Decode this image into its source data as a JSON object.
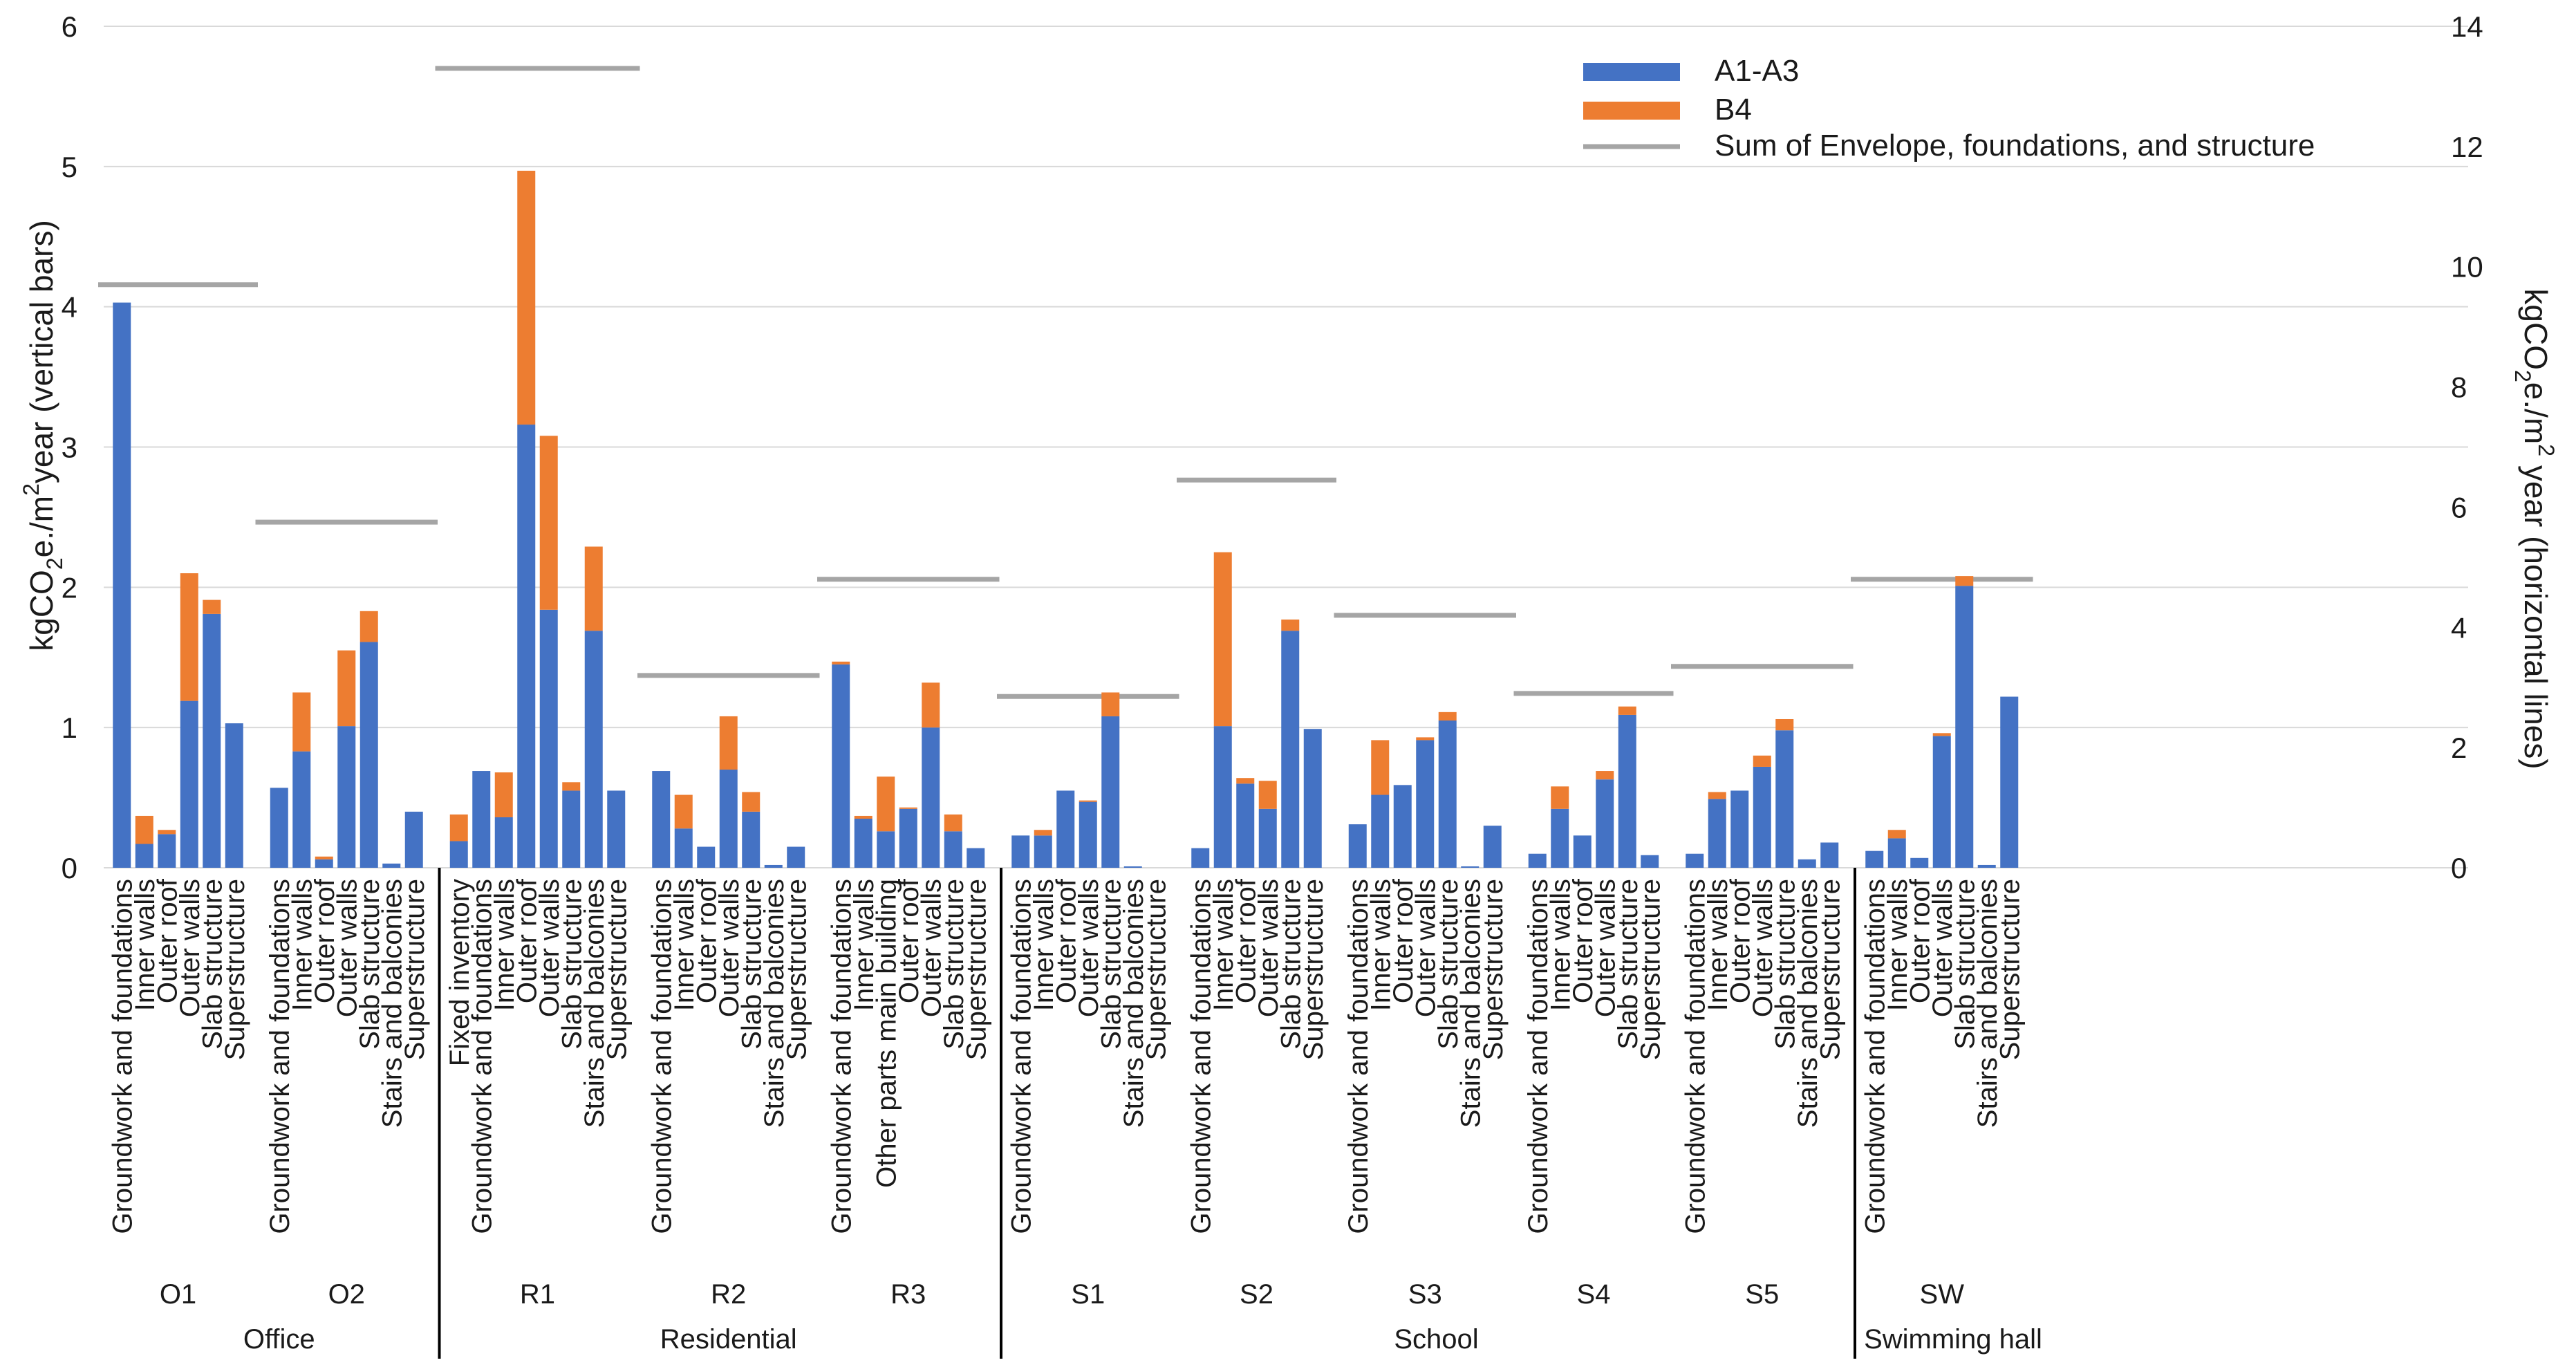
{
  "chart_data": {
    "type": "bar",
    "stacked": true,
    "left_axis": {
      "label_main": "kgCO",
      "label_sub": "2",
      "label_mid": "e./m",
      "label_sup": "2",
      "label_end": "year (vertical bars)",
      "ylim": [
        0,
        6
      ],
      "ticks": [
        "0",
        "1",
        "2",
        "3",
        "4",
        "5",
        "6"
      ]
    },
    "right_axis": {
      "label_main": "kgCO",
      "label_sub": "2",
      "label_mid": "e./m",
      "label_sup": "2",
      "label_end": " year (horizontal lines)",
      "ylim": [
        0,
        14
      ],
      "ticks": [
        "0",
        "2",
        "4",
        "6",
        "8",
        "10",
        "12",
        "14"
      ]
    },
    "legend": {
      "position": "top-right",
      "items": [
        {
          "name": "A1-A3",
          "color": "#4472C4",
          "kind": "bar"
        },
        {
          "name": "B4",
          "color": "#ED7D31",
          "kind": "bar"
        },
        {
          "name": "Sum of Envelope, foundations, and structure",
          "color": "#A5A5A5",
          "kind": "line"
        }
      ]
    },
    "colors": {
      "a1a3": "#4472C4",
      "b4": "#ED7D31",
      "sum": "#A5A5A5",
      "grid": "#D9D9D9",
      "axis": "#000000"
    },
    "sections": [
      {
        "name": "Office",
        "groups": [
          {
            "name": "O1",
            "sum": 9.7,
            "bars": [
              {
                "label": "Groundwork and foundations",
                "a1a3": 4.03,
                "b4": 0
              },
              {
                "label": "Inner walls",
                "a1a3": 0.17,
                "b4": 0.2
              },
              {
                "label": "Outer roof",
                "a1a3": 0.24,
                "b4": 0.03
              },
              {
                "label": "Outer walls",
                "a1a3": 1.19,
                "b4": 0.91
              },
              {
                "label": "Slab structure",
                "a1a3": 1.81,
                "b4": 0.1
              },
              {
                "label": "Superstructure",
                "a1a3": 1.03,
                "b4": 0
              }
            ]
          },
          {
            "name": "O2",
            "sum": 5.75,
            "bars": [
              {
                "label": "Groundwork and foundations",
                "a1a3": 0.57,
                "b4": 0
              },
              {
                "label": "Inner walls",
                "a1a3": 0.83,
                "b4": 0.42
              },
              {
                "label": "Outer roof",
                "a1a3": 0.06,
                "b4": 0.02
              },
              {
                "label": "Outer walls",
                "a1a3": 1.01,
                "b4": 0.54
              },
              {
                "label": "Slab structure",
                "a1a3": 1.61,
                "b4": 0.22
              },
              {
                "label": "Stairs and balconies",
                "a1a3": 0.03,
                "b4": 0
              },
              {
                "label": "Superstructure",
                "a1a3": 0.4,
                "b4": 0
              }
            ]
          }
        ]
      },
      {
        "name": "Residential",
        "groups": [
          {
            "name": "R1",
            "sum": 13.3,
            "bars": [
              {
                "label": "Fixed inventory",
                "a1a3": 0.19,
                "b4": 0.19
              },
              {
                "label": "Groundwork and foundations",
                "a1a3": 0.69,
                "b4": 0
              },
              {
                "label": "Inner walls",
                "a1a3": 0.36,
                "b4": 0.32
              },
              {
                "label": "Outer roof",
                "a1a3": 3.16,
                "b4": 1.81
              },
              {
                "label": "Outer walls",
                "a1a3": 1.84,
                "b4": 1.24
              },
              {
                "label": "Slab structure",
                "a1a3": 0.55,
                "b4": 0.06
              },
              {
                "label": "Stairs and balconies",
                "a1a3": 1.69,
                "b4": 0.6
              },
              {
                "label": "Superstructure",
                "a1a3": 0.55,
                "b4": 0
              }
            ]
          },
          {
            "name": "R2",
            "sum": 3.2,
            "bars": [
              {
                "label": "Groundwork and foundations",
                "a1a3": 0.69,
                "b4": 0
              },
              {
                "label": "Inner walls",
                "a1a3": 0.28,
                "b4": 0.24
              },
              {
                "label": "Outer roof",
                "a1a3": 0.15,
                "b4": 0
              },
              {
                "label": "Outer walls",
                "a1a3": 0.7,
                "b4": 0.38
              },
              {
                "label": "Slab structure",
                "a1a3": 0.4,
                "b4": 0.14
              },
              {
                "label": "Stairs and balconies",
                "a1a3": 0.02,
                "b4": 0
              },
              {
                "label": "Superstructure",
                "a1a3": 0.15,
                "b4": 0
              }
            ]
          },
          {
            "name": "R3",
            "sum": 4.8,
            "bars": [
              {
                "label": "Groundwork and foundations",
                "a1a3": 1.45,
                "b4": 0.02
              },
              {
                "label": "Inner walls",
                "a1a3": 0.35,
                "b4": 0.02
              },
              {
                "label": "Other parts main building",
                "a1a3": 0.26,
                "b4": 0.39
              },
              {
                "label": "Outer roof",
                "a1a3": 0.42,
                "b4": 0.01
              },
              {
                "label": "Outer walls",
                "a1a3": 1.0,
                "b4": 0.32
              },
              {
                "label": "Slab structure",
                "a1a3": 0.26,
                "b4": 0.12
              },
              {
                "label": "Superstructure",
                "a1a3": 0.14,
                "b4": 0
              }
            ]
          }
        ]
      },
      {
        "name": "School",
        "groups": [
          {
            "name": "S1",
            "sum": 2.85,
            "bars": [
              {
                "label": "Groundwork and foundations",
                "a1a3": 0.23,
                "b4": 0
              },
              {
                "label": "Inner walls",
                "a1a3": 0.23,
                "b4": 0.04
              },
              {
                "label": "Outer roof",
                "a1a3": 0.55,
                "b4": 0
              },
              {
                "label": "Outer walls",
                "a1a3": 0.47,
                "b4": 0.01
              },
              {
                "label": "Slab structure",
                "a1a3": 1.08,
                "b4": 0.17
              },
              {
                "label": "Stairs and balconies",
                "a1a3": 0.01,
                "b4": 0
              },
              {
                "label": "Superstructure",
                "a1a3": 0.0,
                "b4": 0
              }
            ]
          },
          {
            "name": "S2",
            "sum": 6.45,
            "bars": [
              {
                "label": "Groundwork and foundations",
                "a1a3": 0.14,
                "b4": 0
              },
              {
                "label": "Inner walls",
                "a1a3": 1.01,
                "b4": 1.24
              },
              {
                "label": "Outer roof",
                "a1a3": 0.6,
                "b4": 0.04
              },
              {
                "label": "Outer walls",
                "a1a3": 0.42,
                "b4": 0.2
              },
              {
                "label": "Slab structure",
                "a1a3": 1.69,
                "b4": 0.08
              },
              {
                "label": "Superstructure",
                "a1a3": 0.99,
                "b4": 0
              }
            ]
          },
          {
            "name": "S3",
            "sum": 4.2,
            "bars": [
              {
                "label": "Groundwork and foundations",
                "a1a3": 0.31,
                "b4": 0
              },
              {
                "label": "Inner walls",
                "a1a3": 0.52,
                "b4": 0.39
              },
              {
                "label": "Outer roof",
                "a1a3": 0.59,
                "b4": 0
              },
              {
                "label": "Outer walls",
                "a1a3": 0.91,
                "b4": 0.02
              },
              {
                "label": "Slab structure",
                "a1a3": 1.05,
                "b4": 0.06
              },
              {
                "label": "Stairs and balconies",
                "a1a3": 0.01,
                "b4": 0
              },
              {
                "label": "Superstructure",
                "a1a3": 0.3,
                "b4": 0
              }
            ]
          },
          {
            "name": "S4",
            "sum": 2.9,
            "bars": [
              {
                "label": "Groundwork and foundations",
                "a1a3": 0.1,
                "b4": 0
              },
              {
                "label": "Inner walls",
                "a1a3": 0.42,
                "b4": 0.16
              },
              {
                "label": "Outer roof",
                "a1a3": 0.23,
                "b4": 0
              },
              {
                "label": "Outer walls",
                "a1a3": 0.63,
                "b4": 0.06
              },
              {
                "label": "Slab structure",
                "a1a3": 1.09,
                "b4": 0.06
              },
              {
                "label": "Superstructure",
                "a1a3": 0.09,
                "b4": 0
              }
            ]
          },
          {
            "name": "S5",
            "sum": 3.35,
            "bars": [
              {
                "label": "Groundwork and foundations",
                "a1a3": 0.1,
                "b4": 0
              },
              {
                "label": "Inner walls",
                "a1a3": 0.49,
                "b4": 0.05
              },
              {
                "label": "Outer roof",
                "a1a3": 0.55,
                "b4": 0
              },
              {
                "label": "Outer walls",
                "a1a3": 0.72,
                "b4": 0.08
              },
              {
                "label": "Slab structure",
                "a1a3": 0.98,
                "b4": 0.08
              },
              {
                "label": "Stairs and balconies",
                "a1a3": 0.06,
                "b4": 0
              },
              {
                "label": "Superstructure",
                "a1a3": 0.18,
                "b4": 0
              }
            ]
          }
        ]
      },
      {
        "name": "Swimming hall",
        "groups": [
          {
            "name": "SW",
            "sum": 4.8,
            "bars": [
              {
                "label": "Groundwork and foundations",
                "a1a3": 0.12,
                "b4": 0
              },
              {
                "label": "Inner walls",
                "a1a3": 0.21,
                "b4": 0.06
              },
              {
                "label": "Outer roof",
                "a1a3": 0.07,
                "b4": 0
              },
              {
                "label": "Outer walls",
                "a1a3": 0.94,
                "b4": 0.02
              },
              {
                "label": "Slab structure",
                "a1a3": 2.01,
                "b4": 0.07
              },
              {
                "label": "Stairs and balconies",
                "a1a3": 0.02,
                "b4": 0
              },
              {
                "label": "Superstructure",
                "a1a3": 1.22,
                "b4": 0
              }
            ]
          }
        ]
      }
    ]
  }
}
